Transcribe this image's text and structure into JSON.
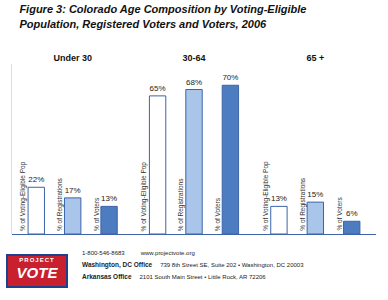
{
  "chart_data": {
    "type": "bar",
    "title": "Figure 3: Colorado Age Composition by Voting-Eligible\nPopulation, Registered Voters and Voters, 2006",
    "categories": [
      "Under 30",
      "30-64",
      "65 +"
    ],
    "series": [
      {
        "name": "% of Voting-Eligible Pop",
        "color": "#ffffff",
        "values": [
          22,
          65,
          13
        ],
        "value_labels": [
          "22%",
          "65%",
          "13%"
        ]
      },
      {
        "name": "% of Registrations",
        "color": "#a9c6ea",
        "values": [
          17,
          68,
          15
        ],
        "value_labels": [
          "17%",
          "68%",
          "15%"
        ]
      },
      {
        "name": "% of Voters",
        "color": "#4d7cc1",
        "values": [
          13,
          70,
          6
        ],
        "value_labels": [
          "13%",
          "70%",
          "6%"
        ]
      }
    ],
    "ylim": [
      0,
      80
    ],
    "data_labels": true,
    "tick_labels": "x",
    "grid": false
  },
  "footer": {
    "logo": [
      "PROJECT",
      "VOTE"
    ],
    "phone": "1-800-546-8683",
    "website": "www.projectvote.org",
    "offices": [
      {
        "name": "Washington, DC Office",
        "address": "739 8th Street SE, Suite 202 • Washington, DC 20003"
      },
      {
        "name": "Arkansas Office",
        "address": "2101 South Main Street • Little Rock, AR 72206"
      }
    ]
  }
}
